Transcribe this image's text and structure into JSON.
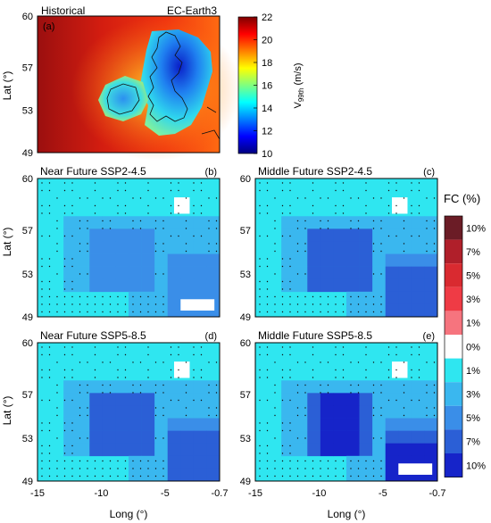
{
  "historical_panel": {
    "title": "Historical",
    "model": "EC-Earth3",
    "letter": "(a)",
    "colorbar": {
      "ticks": [
        "22",
        "20",
        "18",
        "16",
        "14",
        "12",
        "10"
      ],
      "label_main": "V",
      "label_sub": "99th",
      "label_unit": " (m/s)",
      "range": [
        10,
        22
      ],
      "colormap": "jet"
    }
  },
  "change_panels": [
    {
      "letter": "(b)",
      "title": "Near Future SSP2-4.5",
      "intensity": 1
    },
    {
      "letter": "(c)",
      "title": "Middle Future SSP2-4.5",
      "intensity": 2
    },
    {
      "letter": "(d)",
      "title": "Near Future SSP5-8.5",
      "intensity": 2
    },
    {
      "letter": "(e)",
      "title": "Middle Future SSP5-8.5",
      "intensity": 3
    }
  ],
  "axes": {
    "ylabel": "Lat (°)",
    "xlabel": "Long (°)",
    "lat_ticks": [
      "60",
      "57",
      "53",
      "49"
    ],
    "lon_ticks": [
      "-15",
      "-10",
      "-5",
      "-0.7"
    ]
  },
  "fc_colorbar": {
    "title": "FC (%)",
    "labels": [
      "10%",
      "7%",
      "5%",
      "3%",
      "1%",
      "0%",
      "1%",
      "3%",
      "5%",
      "7%",
      "10%"
    ],
    "colors": [
      "#6b1c26",
      "#b01f2a",
      "#d92a30",
      "#ef3b45",
      "#f6747e",
      "#ffffff",
      "#2fe6f0",
      "#3ab7ef",
      "#3a8ee8",
      "#2b5fd6",
      "#1624c9"
    ]
  }
}
